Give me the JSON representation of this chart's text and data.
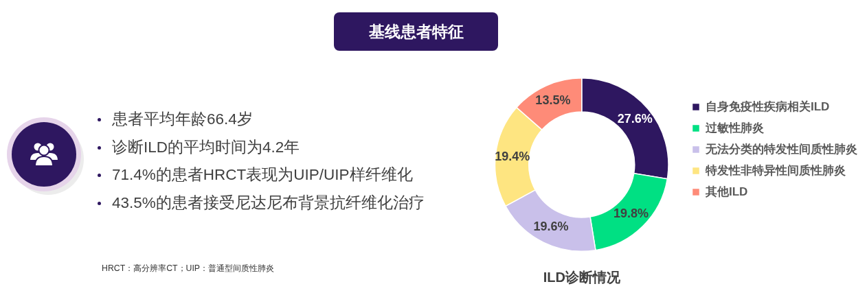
{
  "chart_data": [
    {
      "type": "other",
      "title": "基线患者特征",
      "annotations": [
        "患者平均年龄66.4岁",
        "诊断ILD的平均时间为4.2年",
        "71.4%的患者HRCT表现为UIP/UIP样纤维化",
        "43.5%的患者接受尼达尼布背景抗纤维化治疗",
        "HRCT：高分辨率CT；UIP：普通型间质性肺炎"
      ]
    },
    {
      "type": "donut",
      "title": "ILD诊断情况",
      "categories": [
        "自身免疫性疾病相关ILD",
        "过敏性肺炎",
        "无法分类的特发性间质性肺炎",
        "特发性非特异性间质性肺炎",
        "其他ILD"
      ],
      "values": [
        27.6,
        19.8,
        19.6,
        19.4,
        13.5
      ],
      "colors": [
        "#2e1760",
        "#00e083",
        "#c9c0ea",
        "#fee581",
        "#fe8b78"
      ],
      "value_labels": [
        "27.6%",
        "19.8%",
        "19.6%",
        "19.4%",
        "13.5%"
      ],
      "legend": "right"
    }
  ]
}
